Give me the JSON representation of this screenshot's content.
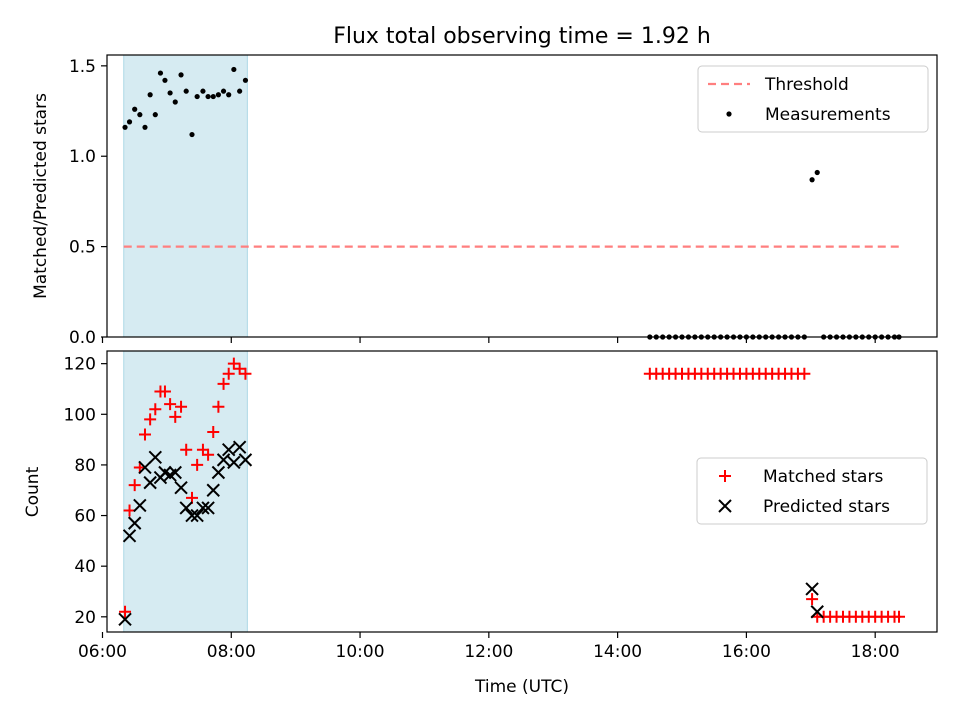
{
  "figure": {
    "title": "Flux total observing time = 1.92 h"
  },
  "colors": {
    "shade": "#add8e6",
    "threshold": "#ff7f7f",
    "matched": "#ff0000",
    "predicted": "#000000",
    "measure": "#000000"
  },
  "chart_data": [
    {
      "type": "scatter",
      "ylabel": "Matched/Predicted stars",
      "xlabel": "",
      "xlim": [
        6.07,
        18.96
      ],
      "ylim": [
        0,
        1.56
      ],
      "yticks": [
        0.0,
        0.5,
        1.0,
        1.5
      ],
      "ytick_labels": [
        "0.0",
        "0.5",
        "1.0",
        "1.5"
      ],
      "grid": false,
      "legend_position": "top-right",
      "shaded_span": [
        6.33,
        8.25
      ],
      "threshold": {
        "name": "Threshold",
        "y": 0.5,
        "x_range": [
          6.33,
          18.37
        ]
      },
      "series": [
        {
          "name": "Measurements",
          "points": [
            [
              6.35,
              1.16
            ],
            [
              6.42,
              1.19
            ],
            [
              6.5,
              1.26
            ],
            [
              6.58,
              1.23
            ],
            [
              6.66,
              1.16
            ],
            [
              6.74,
              1.34
            ],
            [
              6.82,
              1.23
            ],
            [
              6.9,
              1.46
            ],
            [
              6.97,
              1.42
            ],
            [
              7.05,
              1.35
            ],
            [
              7.13,
              1.3
            ],
            [
              7.22,
              1.45
            ],
            [
              7.3,
              1.36
            ],
            [
              7.39,
              1.12
            ],
            [
              7.47,
              1.33
            ],
            [
              7.56,
              1.36
            ],
            [
              7.64,
              1.33
            ],
            [
              7.72,
              1.33
            ],
            [
              7.8,
              1.34
            ],
            [
              7.88,
              1.36
            ],
            [
              7.96,
              1.34
            ],
            [
              8.04,
              1.48
            ],
            [
              8.13,
              1.36
            ],
            [
              8.22,
              1.42
            ],
            [
              14.5,
              0
            ],
            [
              14.6,
              0
            ],
            [
              14.7,
              0
            ],
            [
              14.8,
              0
            ],
            [
              14.9,
              0
            ],
            [
              15.0,
              0
            ],
            [
              15.1,
              0
            ],
            [
              15.2,
              0
            ],
            [
              15.3,
              0
            ],
            [
              15.4,
              0
            ],
            [
              15.5,
              0
            ],
            [
              15.6,
              0
            ],
            [
              15.7,
              0
            ],
            [
              15.8,
              0
            ],
            [
              15.9,
              0
            ],
            [
              16.0,
              0
            ],
            [
              16.1,
              0
            ],
            [
              16.2,
              0
            ],
            [
              16.3,
              0
            ],
            [
              16.4,
              0
            ],
            [
              16.5,
              0
            ],
            [
              16.6,
              0
            ],
            [
              16.7,
              0
            ],
            [
              16.8,
              0
            ],
            [
              16.9,
              0
            ],
            [
              17.02,
              0.87
            ],
            [
              17.1,
              0.91
            ],
            [
              17.2,
              0
            ],
            [
              17.3,
              0
            ],
            [
              17.4,
              0
            ],
            [
              17.5,
              0
            ],
            [
              17.6,
              0
            ],
            [
              17.7,
              0
            ],
            [
              17.8,
              0
            ],
            [
              17.9,
              0
            ],
            [
              18.0,
              0
            ],
            [
              18.1,
              0
            ],
            [
              18.2,
              0
            ],
            [
              18.3,
              0
            ],
            [
              18.37,
              0
            ]
          ]
        }
      ]
    },
    {
      "type": "scatter",
      "ylabel": "Count",
      "xlabel": "Time (UTC)",
      "xlim": [
        6.07,
        18.96
      ],
      "ylim": [
        14,
        125
      ],
      "yticks": [
        20,
        40,
        60,
        80,
        100,
        120
      ],
      "ytick_labels": [
        "20",
        "40",
        "60",
        "80",
        "100",
        "120"
      ],
      "xticks": [
        6,
        8,
        10,
        12,
        14,
        16,
        18
      ],
      "xtick_labels": [
        "06:00",
        "08:00",
        "10:00",
        "12:00",
        "14:00",
        "16:00",
        "18:00"
      ],
      "grid": false,
      "legend_position": "center-right",
      "shaded_span": [
        6.33,
        8.25
      ],
      "series": [
        {
          "name": "Matched stars",
          "points": [
            [
              6.35,
              22
            ],
            [
              6.42,
              62
            ],
            [
              6.5,
              72
            ],
            [
              6.58,
              79
            ],
            [
              6.66,
              92
            ],
            [
              6.74,
              98
            ],
            [
              6.82,
              102
            ],
            [
              6.9,
              109
            ],
            [
              6.97,
              109
            ],
            [
              7.05,
              104
            ],
            [
              7.13,
              99
            ],
            [
              7.22,
              103
            ],
            [
              7.3,
              86
            ],
            [
              7.39,
              67
            ],
            [
              7.47,
              80
            ],
            [
              7.56,
              86
            ],
            [
              7.64,
              84
            ],
            [
              7.72,
              93
            ],
            [
              7.8,
              103
            ],
            [
              7.88,
              112
            ],
            [
              7.96,
              116
            ],
            [
              8.04,
              120
            ],
            [
              8.13,
              118
            ],
            [
              8.22,
              116
            ],
            [
              14.5,
              116
            ],
            [
              14.6,
              116
            ],
            [
              14.7,
              116
            ],
            [
              14.8,
              116
            ],
            [
              14.9,
              116
            ],
            [
              15.0,
              116
            ],
            [
              15.1,
              116
            ],
            [
              15.2,
              116
            ],
            [
              15.3,
              116
            ],
            [
              15.4,
              116
            ],
            [
              15.5,
              116
            ],
            [
              15.6,
              116
            ],
            [
              15.7,
              116
            ],
            [
              15.8,
              116
            ],
            [
              15.9,
              116
            ],
            [
              16.0,
              116
            ],
            [
              16.1,
              116
            ],
            [
              16.2,
              116
            ],
            [
              16.3,
              116
            ],
            [
              16.4,
              116
            ],
            [
              16.5,
              116
            ],
            [
              16.6,
              116
            ],
            [
              16.7,
              116
            ],
            [
              16.8,
              116
            ],
            [
              16.9,
              116
            ],
            [
              17.02,
              27
            ],
            [
              17.1,
              20
            ],
            [
              17.2,
              20
            ],
            [
              17.3,
              20
            ],
            [
              17.4,
              20
            ],
            [
              17.5,
              20
            ],
            [
              17.6,
              20
            ],
            [
              17.7,
              20
            ],
            [
              17.8,
              20
            ],
            [
              17.9,
              20
            ],
            [
              18.0,
              20
            ],
            [
              18.1,
              20
            ],
            [
              18.2,
              20
            ],
            [
              18.3,
              20
            ],
            [
              18.37,
              20
            ]
          ]
        },
        {
          "name": "Predicted stars",
          "points": [
            [
              6.35,
              19
            ],
            [
              6.42,
              52
            ],
            [
              6.5,
              57
            ],
            [
              6.58,
              64
            ],
            [
              6.66,
              79
            ],
            [
              6.74,
              73
            ],
            [
              6.82,
              83
            ],
            [
              6.9,
              75
            ],
            [
              6.97,
              77
            ],
            [
              7.05,
              76
            ],
            [
              7.13,
              77
            ],
            [
              7.22,
              71
            ],
            [
              7.3,
              63
            ],
            [
              7.39,
              60
            ],
            [
              7.47,
              60
            ],
            [
              7.56,
              63
            ],
            [
              7.64,
              63
            ],
            [
              7.72,
              70
            ],
            [
              7.8,
              77
            ],
            [
              7.88,
              82
            ],
            [
              7.96,
              86
            ],
            [
              8.04,
              81
            ],
            [
              8.13,
              87
            ],
            [
              8.22,
              82
            ],
            [
              17.02,
              31
            ],
            [
              17.1,
              22
            ]
          ]
        }
      ]
    }
  ]
}
